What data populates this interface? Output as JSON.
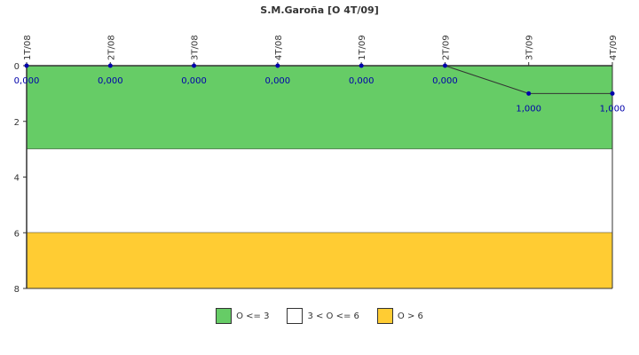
{
  "chart_data": {
    "type": "line",
    "title": "S.M.Garoña [O 4T/09]",
    "categories": [
      "1T/08",
      "2T/08",
      "3T/08",
      "4T/08",
      "1T/09",
      "2T/09",
      "3T/09",
      "4T/09"
    ],
    "series": [
      {
        "values": [
          0,
          0,
          0,
          0,
          0,
          0,
          1,
          1
        ],
        "labels": [
          "0,000",
          "0,000",
          "0,000",
          "0,000",
          "0,000",
          "0,000",
          "1,000",
          "1,000"
        ]
      }
    ],
    "y_ticks": [
      "0",
      "2",
      "4",
      "6",
      "8"
    ],
    "ylim": [
      0,
      8
    ],
    "y_inverted": true,
    "bands": [
      {
        "from": 0,
        "to": 3,
        "color": "#66cc66",
        "label": "O <= 3"
      },
      {
        "from": 3,
        "to": 6,
        "color": "#ffffff",
        "label": "3 < O <= 6"
      },
      {
        "from": 6,
        "to": 8,
        "color": "#ffcc33",
        "label": "O > 6"
      }
    ],
    "legend_position": "bottom",
    "line_color": "#333333",
    "marker_color": "#0000aa"
  }
}
